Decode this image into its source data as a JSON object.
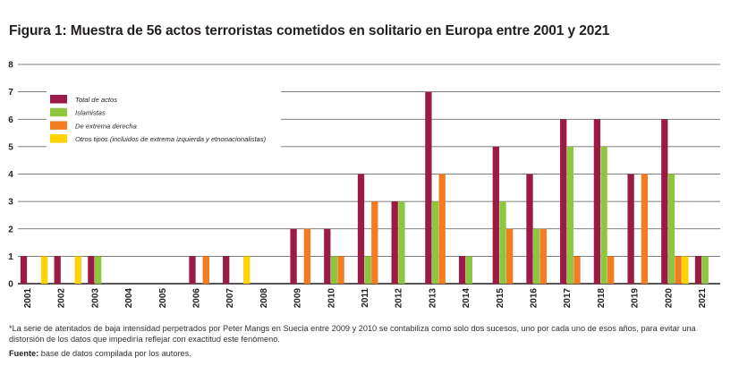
{
  "chart_data": {
    "type": "bar",
    "title": "Figura 1: Muestra de 56 actos terroristas cometidos en solitario en Europa entre 2001 y 2021",
    "xlabel": "",
    "ylabel": "",
    "ylim": [
      0,
      8
    ],
    "yticks": [
      "0",
      "1",
      "2",
      "3",
      "4",
      "5",
      "6",
      "7",
      "8"
    ],
    "grid": true,
    "legend_position": "top-left",
    "categories": [
      "2001",
      "2002",
      "2003",
      "2004",
      "2005",
      "2006",
      "2007",
      "2008",
      "2009",
      "2010",
      "2011",
      "2012",
      "2013",
      "2014",
      "2015",
      "2016",
      "2017",
      "2018",
      "2019",
      "2020",
      "2021"
    ],
    "series": [
      {
        "name": "Total de actos",
        "color": "#9b1b45",
        "values": [
          1,
          1,
          1,
          0,
          0,
          1,
          1,
          0,
          2,
          2,
          4,
          3,
          7,
          1,
          5,
          4,
          6,
          6,
          4,
          6,
          1
        ]
      },
      {
        "name": "Islamistas",
        "color": "#8dc63f",
        "values": [
          0,
          0,
          1,
          0,
          0,
          0,
          0,
          0,
          0,
          1,
          1,
          3,
          3,
          1,
          3,
          2,
          5,
          5,
          0,
          4,
          1
        ]
      },
      {
        "name": "De extrema derecha",
        "color": "#f47b20",
        "values": [
          0,
          0,
          0,
          0,
          0,
          1,
          0,
          0,
          2,
          1,
          3,
          0,
          4,
          0,
          2,
          2,
          1,
          1,
          4,
          1,
          0
        ]
      },
      {
        "name": "Otros tipos (incluidos de extrema izquierda y etnonacionalistas)",
        "color": "#ffd200",
        "values": [
          1,
          1,
          0,
          0,
          0,
          0,
          1,
          0,
          0,
          0,
          0,
          0,
          0,
          0,
          0,
          0,
          0,
          0,
          0,
          1,
          0
        ]
      }
    ]
  },
  "note": {
    "text": "*La serie de atentados de baja intensidad perpetrados por Peter Mangs en Suecia entre 2009 y 2010 se contabiliza como solo dos sucesos, uno por cada uno de esos años, para evitar una distorsión de los datos que impediría reflejar con exactitud este fenómeno."
  },
  "source": {
    "label": "Fuente:",
    "text": " base de datos compilada por los autores."
  }
}
